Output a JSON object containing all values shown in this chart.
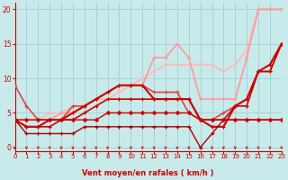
{
  "xlabel": "Vent moyen/en rafales ( km/h )",
  "xlim": [
    0,
    23
  ],
  "ylim": [
    -0.5,
    21
  ],
  "yticks": [
    0,
    5,
    10,
    15,
    20
  ],
  "xticks": [
    0,
    1,
    2,
    3,
    4,
    5,
    6,
    7,
    8,
    9,
    10,
    11,
    12,
    13,
    14,
    15,
    16,
    17,
    18,
    19,
    20,
    21,
    22,
    23
  ],
  "bg_color": "#c8eaea",
  "grid_color": "#a8d4d4",
  "lines": [
    {
      "x": [
        0,
        1,
        2,
        3,
        4,
        5,
        6,
        7,
        8,
        9,
        10,
        11,
        12,
        13,
        14,
        15,
        16,
        17,
        18,
        19,
        20,
        21,
        22,
        23
      ],
      "y": [
        4,
        4,
        4,
        4,
        4,
        4,
        4,
        4,
        5,
        5,
        5,
        5,
        5,
        5,
        5,
        5,
        4,
        4,
        4,
        4,
        4,
        4,
        4,
        4
      ],
      "color": "#cc0000",
      "lw": 1.0,
      "marker": "D",
      "ms": 2.0,
      "zorder": 6
    },
    {
      "x": [
        0,
        1,
        2,
        3,
        4,
        5,
        6,
        7,
        8,
        9,
        10,
        11,
        12,
        13,
        14,
        15,
        16,
        17,
        18,
        19,
        20,
        21,
        22,
        23
      ],
      "y": [
        4,
        3,
        3,
        3,
        4,
        4,
        5,
        6,
        7,
        7,
        7,
        7,
        7,
        7,
        7,
        7,
        4,
        4,
        4,
        6,
        6,
        11,
        11,
        15
      ],
      "color": "#cc0000",
      "lw": 1.2,
      "marker": "+",
      "ms": 3.5,
      "zorder": 5
    },
    {
      "x": [
        0,
        1,
        2,
        3,
        4,
        5,
        6,
        7,
        8,
        9,
        10,
        11,
        12,
        13,
        14,
        15,
        16,
        17,
        18,
        19,
        20,
        21,
        22,
        23
      ],
      "y": [
        4,
        3,
        3,
        4,
        4,
        5,
        6,
        7,
        8,
        9,
        9,
        9,
        7,
        7,
        7,
        7,
        4,
        3,
        3,
        6,
        7,
        11,
        12,
        15
      ],
      "color": "#cc0000",
      "lw": 1.5,
      "marker": "+",
      "ms": 3.5,
      "zorder": 5
    },
    {
      "x": [
        0,
        1,
        2,
        3,
        4,
        5,
        6,
        7,
        8,
        9,
        10,
        11,
        12,
        13,
        14,
        15,
        16,
        17,
        18,
        19,
        20,
        21,
        22,
        23
      ],
      "y": [
        9,
        6,
        4,
        4,
        4,
        6,
        6,
        7,
        8,
        9,
        9,
        9,
        8,
        8,
        8,
        5,
        4,
        4,
        5,
        6,
        7,
        11,
        11,
        15
      ],
      "color": "#dd4444",
      "lw": 1.2,
      "marker": "+",
      "ms": 3.0,
      "zorder": 4
    },
    {
      "x": [
        0,
        1,
        2,
        3,
        4,
        5,
        6,
        7,
        8,
        9,
        10,
        11,
        12,
        13,
        14,
        15,
        16,
        17,
        18,
        19,
        20,
        21,
        22,
        23
      ],
      "y": [
        4,
        4,
        4,
        4,
        5,
        5,
        6,
        7,
        8,
        9,
        9,
        9,
        13,
        13,
        15,
        13,
        7,
        7,
        7,
        7,
        13,
        20,
        20,
        20
      ],
      "color": "#ff9999",
      "lw": 1.2,
      "marker": "+",
      "ms": 3.0,
      "zorder": 3
    },
    {
      "x": [
        0,
        1,
        2,
        3,
        4,
        5,
        6,
        7,
        8,
        9,
        10,
        11,
        12,
        13,
        14,
        15,
        16,
        17,
        18,
        19,
        20,
        21,
        22,
        23
      ],
      "y": [
        4,
        4,
        4,
        5,
        5,
        6,
        6,
        7,
        7,
        8,
        9,
        10,
        11,
        12,
        12,
        12,
        12,
        12,
        11,
        12,
        14,
        20,
        20,
        20
      ],
      "color": "#ffbbbb",
      "lw": 1.5,
      "marker": null,
      "ms": 0,
      "zorder": 2
    },
    {
      "x": [
        0,
        1,
        2,
        3,
        4,
        5,
        6,
        7,
        8,
        9,
        10,
        11,
        12,
        13,
        14,
        15,
        16,
        17,
        18,
        19,
        20,
        21,
        22,
        23
      ],
      "y": [
        4,
        2,
        2,
        2,
        2,
        2,
        3,
        3,
        3,
        3,
        3,
        3,
        3,
        3,
        3,
        3,
        0,
        2,
        4,
        4,
        4,
        4,
        4,
        4
      ],
      "color": "#aa0000",
      "lw": 1.0,
      "marker": "+",
      "ms": 3.0,
      "zorder": 5
    }
  ],
  "arrow_color": "#cc0000",
  "axis_color": "#cc0000",
  "tick_color": "#cc0000"
}
